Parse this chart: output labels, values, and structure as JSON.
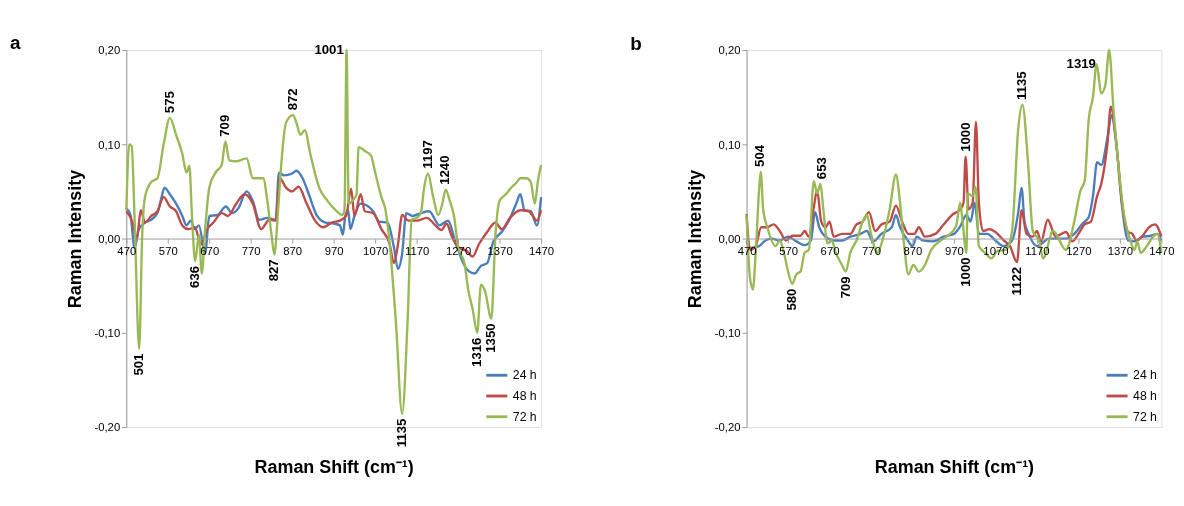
{
  "chart_data": [
    {
      "type": "line",
      "title": "a",
      "xlabel": "Raman Shift (cm⁻¹)",
      "ylabel": "Raman Intensity",
      "xlim": [
        470,
        1470
      ],
      "xticks": [
        470,
        570,
        670,
        770,
        870,
        970,
        1070,
        1170,
        1270,
        1370,
        1470
      ],
      "ylim": [
        -0.2,
        0.2
      ],
      "yticks": [
        {
          "value": -0.2,
          "label": "-0,20"
        },
        {
          "value": -0.1,
          "label": "-0,10"
        },
        {
          "value": 0,
          "label": "0,00"
        },
        {
          "value": 0.1,
          "label": "0,10"
        },
        {
          "value": 0.2,
          "label": "0,20"
        }
      ],
      "grid": false,
      "legend": "bottom right",
      "series": [
        {
          "name": "24 h",
          "color": "#4a7ebb",
          "x": [
            470,
            480,
            490,
            500,
            515,
            530,
            545,
            555,
            562,
            575,
            590,
            605,
            615,
            625,
            635,
            645,
            660,
            670,
            690,
            710,
            725,
            740,
            760,
            775,
            790,
            810,
            830,
            838,
            850,
            870,
            880,
            895,
            910,
            930,
            950,
            970,
            985,
            992,
            998,
            1005,
            1010,
            1020,
            1035,
            1050,
            1065,
            1080,
            1100,
            1115,
            1125,
            1135,
            1145,
            1160,
            1180,
            1200,
            1225,
            1245,
            1265,
            1290,
            1310,
            1325,
            1340,
            1355,
            1375,
            1390,
            1410,
            1420,
            1430,
            1445,
            1460,
            1470
          ],
          "values": [
            0.032,
            0.025,
            -0.01,
            0.01,
            0.017,
            0.02,
            0.027,
            0.044,
            0.054,
            0.047,
            0.037,
            0.024,
            0.014,
            0.019,
            0.01,
            0.014,
            -0.016,
            0.024,
            0.025,
            0.034,
            0.027,
            0.032,
            0.05,
            0.04,
            0.02,
            0.022,
            0.02,
            0.07,
            0.067,
            0.069,
            0.072,
            0.064,
            0.047,
            0.024,
            0.017,
            0.016,
            0.014,
            0.004,
            0.024,
            0.03,
            0.01,
            0.024,
            0.037,
            0.035,
            0.029,
            0.018,
            0.017,
            -0.009,
            -0.032,
            -0.016,
            0.027,
            0.024,
            0.027,
            0.029,
            0.014,
            0.019,
            -0.006,
            -0.032,
            -0.037,
            -0.029,
            -0.026,
            -0.003,
            0.007,
            0.017,
            0.037,
            0.047,
            0.03,
            0.029,
            0.014,
            0.044
          ]
        },
        {
          "name": "48 h",
          "color": "#be4b48",
          "x": [
            470,
            485,
            495,
            505,
            515,
            530,
            545,
            560,
            575,
            590,
            605,
            620,
            635,
            650,
            665,
            680,
            700,
            715,
            735,
            755,
            775,
            795,
            815,
            830,
            840,
            855,
            870,
            885,
            905,
            925,
            945,
            965,
            985,
            1000,
            1012,
            1020,
            1035,
            1045,
            1065,
            1085,
            1105,
            1115,
            1125,
            1135,
            1150,
            1170,
            1195,
            1215,
            1230,
            1242,
            1255,
            1270,
            1290,
            1305,
            1320,
            1340,
            1360,
            1375,
            1395,
            1420,
            1440,
            1460,
            1470
          ],
          "values": [
            0.029,
            0.017,
            -0.001,
            0.03,
            0.017,
            0.024,
            0.029,
            0.044,
            0.034,
            0.029,
            0.014,
            0.01,
            0.012,
            -0.006,
            0.01,
            0.017,
            0.027,
            0.024,
            0.037,
            0.047,
            0.037,
            0.01,
            0.02,
            0.019,
            0.064,
            0.054,
            0.05,
            0.055,
            0.037,
            0.019,
            0.012,
            0.017,
            0.019,
            0.024,
            0.053,
            0.024,
            0.047,
            0.029,
            0.027,
            0.01,
            -0.006,
            -0.026,
            -0.006,
            0.025,
            0.019,
            0.019,
            0.022,
            0.014,
            0.009,
            0.016,
            0.002,
            -0.009,
            -0.013,
            -0.019,
            -0.006,
            0.007,
            0.017,
            0.01,
            0.022,
            0.03,
            0.029,
            0.019,
            0.03
          ]
        },
        {
          "name": "72 h",
          "color": "#98b954",
          "x": [
            470,
            477,
            483,
            490,
            501,
            508,
            515,
            530,
            545,
            560,
            575,
            590,
            605,
            615,
            622,
            628,
            636,
            645,
            652,
            660,
            670,
            685,
            700,
            709,
            718,
            735,
            760,
            775,
            790,
            800,
            810,
            820,
            827,
            835,
            842,
            855,
            872,
            880,
            890,
            900,
            915,
            935,
            955,
            975,
            990,
            996,
            1001,
            1006,
            1015,
            1025,
            1030,
            1045,
            1060,
            1070,
            1085,
            1095,
            1105,
            1120,
            1135,
            1148,
            1158,
            1170,
            1180,
            1188,
            1197,
            1210,
            1222,
            1232,
            1240,
            1250,
            1260,
            1270,
            1285,
            1295,
            1305,
            1316,
            1325,
            1335,
            1350,
            1360,
            1370,
            1385,
            1400,
            1410,
            1420,
            1435,
            1445,
            1455,
            1462,
            1470
          ],
          "values": [
            0.03,
            0.1,
            0.098,
            0.02,
            -0.117,
            0.0,
            0.044,
            0.06,
            0.064,
            0.1,
            0.128,
            0.11,
            0.09,
            0.07,
            0.077,
            0.027,
            -0.024,
            0.004,
            -0.037,
            0.01,
            0.054,
            0.07,
            0.078,
            0.103,
            0.083,
            0.082,
            0.085,
            0.064,
            0.064,
            0.064,
            0.04,
            0.004,
            -0.017,
            0.024,
            0.07,
            0.123,
            0.131,
            0.123,
            0.11,
            0.115,
            0.087,
            0.054,
            0.04,
            0.03,
            0.025,
            0.03,
            0.2,
            0.037,
            0.04,
            0.047,
            0.097,
            0.093,
            0.088,
            0.07,
            0.044,
            0.03,
            -0.006,
            -0.089,
            -0.186,
            -0.089,
            0.02,
            0.022,
            0.027,
            0.054,
            0.069,
            0.044,
            0.025,
            0.037,
            0.052,
            0.04,
            0.024,
            -0.009,
            -0.026,
            -0.056,
            -0.075,
            -0.1,
            -0.049,
            -0.056,
            -0.085,
            0.004,
            0.04,
            0.047,
            0.055,
            0.059,
            0.064,
            0.064,
            0.06,
            0.037,
            0.06,
            0.078
          ]
        }
      ],
      "annotations": [
        {
          "text": "501",
          "x": 501,
          "y": -0.117
        },
        {
          "text": "575",
          "x": 575,
          "y": 0.128
        },
        {
          "text": "636",
          "x": 636,
          "y": -0.024
        },
        {
          "text": "709",
          "x": 709,
          "y": 0.103
        },
        {
          "text": "827",
          "x": 827,
          "y": -0.017
        },
        {
          "text": "872",
          "x": 872,
          "y": 0.131
        },
        {
          "text": "1001",
          "x": 1001,
          "y": 0.2
        },
        {
          "text": "1135",
          "x": 1135,
          "y": -0.186
        },
        {
          "text": "1197",
          "x": 1197,
          "y": 0.069
        },
        {
          "text": "1240",
          "x": 1240,
          "y": 0.052
        },
        {
          "text": "1316",
          "x": 1316,
          "y": -0.1
        },
        {
          "text": "1350",
          "x": 1350,
          "y": -0.085
        }
      ]
    },
    {
      "type": "line",
      "title": "b",
      "xlabel": "Raman Shift (cm⁻¹)",
      "ylabel": "Raman Intensity",
      "xlim": [
        470,
        1470
      ],
      "xticks": [
        470,
        570,
        670,
        770,
        870,
        970,
        1070,
        1170,
        1270,
        1370,
        1470
      ],
      "ylim": [
        -0.2,
        0.2
      ],
      "yticks": [
        {
          "value": -0.2,
          "label": "-0,20"
        },
        {
          "value": -0.1,
          "label": "-0,10"
        },
        {
          "value": 0,
          "label": "0,00"
        },
        {
          "value": 0.1,
          "label": "0,10"
        },
        {
          "value": 0.2,
          "label": "0,20"
        }
      ],
      "grid": false,
      "legend": "bottom right",
      "series": [
        {
          "name": "24 h",
          "color": "#4a7ebb",
          "x": [
            470,
            480,
            500,
            515,
            530,
            550,
            570,
            590,
            610,
            625,
            635,
            645,
            660,
            680,
            700,
            720,
            745,
            760,
            775,
            795,
            820,
            830,
            840,
            860,
            870,
            880,
            895,
            920,
            945,
            970,
            985,
            1000,
            1010,
            1020,
            1030,
            1050,
            1070,
            1090,
            1110,
            1125,
            1133,
            1140,
            1150,
            1170,
            1200,
            1240,
            1260,
            1280,
            1295,
            1305,
            1315,
            1325,
            1340,
            1350,
            1362,
            1375,
            1390,
            1405,
            1425,
            1445,
            1460,
            1470
          ],
          "values": [
            -0.003,
            -0.01,
            -0.008,
            -0.002,
            0.0,
            -0.002,
            0.002,
            -0.003,
            -0.007,
            -0.002,
            0.028,
            0.012,
            0.002,
            -0.002,
            -0.002,
            0.002,
            0.005,
            0.008,
            -0.003,
            0.005,
            0.012,
            0.025,
            0.012,
            -0.003,
            -0.008,
            0.002,
            -0.002,
            -0.003,
            0.002,
            0.005,
            0.013,
            0.025,
            0.018,
            0.038,
            0.005,
            0.005,
            -0.002,
            -0.008,
            -0.002,
            0.028,
            0.054,
            0.018,
            0.005,
            -0.008,
            0.0,
            0.0,
            0.005,
            0.016,
            0.023,
            0.045,
            0.081,
            0.078,
            0.107,
            0.131,
            0.097,
            0.035,
            -0.002,
            -0.003,
            0.002,
            0.003,
            0.005,
            -0.002
          ]
        },
        {
          "name": "48 h",
          "color": "#be4b48",
          "x": [
            470,
            478,
            492,
            505,
            520,
            535,
            550,
            565,
            580,
            600,
            610,
            620,
            632,
            640,
            650,
            660,
            670,
            680,
            700,
            720,
            735,
            750,
            765,
            780,
            795,
            815,
            830,
            845,
            860,
            875,
            885,
            900,
            925,
            945,
            965,
            985,
            993,
            998,
            1005,
            1015,
            1023,
            1030,
            1040,
            1055,
            1070,
            1090,
            1105,
            1122,
            1133,
            1145,
            1160,
            1170,
            1180,
            1196,
            1215,
            1240,
            1255,
            1270,
            1285,
            1300,
            1315,
            1325,
            1340,
            1348,
            1360,
            1375,
            1390,
            1400,
            1410,
            1425,
            1440,
            1455,
            1470
          ],
          "values": [
            0.026,
            -0.012,
            -0.008,
            0.012,
            0.012,
            0.015,
            0.008,
            -0.002,
            0.003,
            0.003,
            0.008,
            0.002,
            0.033,
            0.051,
            0.018,
            0.012,
            0.018,
            0.002,
            0.005,
            0.005,
            0.015,
            0.018,
            0.028,
            0.008,
            0.015,
            0.018,
            0.035,
            0.018,
            0.005,
            0.005,
            0.012,
            0.002,
            0.005,
            0.015,
            0.025,
            0.031,
            0.038,
            0.087,
            0.031,
            0.038,
            0.124,
            0.038,
            0.008,
            0.01,
            0.007,
            -0.002,
            -0.008,
            -0.025,
            0.03,
            0.005,
            0.002,
            0.008,
            -0.003,
            0.02,
            0.002,
            0.007,
            -0.003,
            0.005,
            0.015,
            0.018,
            0.045,
            0.058,
            0.101,
            0.14,
            0.107,
            0.038,
            0.007,
            0.005,
            -0.002,
            0.003,
            0.012,
            0.015,
            0.002
          ]
        },
        {
          "name": "72 h",
          "color": "#98b954",
          "x": [
            470,
            478,
            485,
            492,
            500,
            504,
            510,
            520,
            540,
            550,
            560,
            570,
            580,
            590,
            600,
            610,
            620,
            632,
            640,
            648,
            655,
            665,
            675,
            685,
            700,
            709,
            720,
            735,
            750,
            760,
            770,
            785,
            800,
            815,
            830,
            840,
            850,
            860,
            872,
            885,
            900,
            915,
            935,
            955,
            975,
            985,
            990,
            1000,
            1003,
            1015,
            1022,
            1030,
            1045,
            1060,
            1075,
            1095,
            1110,
            1125,
            1135,
            1148,
            1160,
            1175,
            1185,
            1209,
            1240,
            1260,
            1275,
            1285,
            1295,
            1305,
            1314,
            1325,
            1335,
            1344,
            1355,
            1365,
            1380,
            1395,
            1405,
            1412,
            1420,
            1435,
            1450,
            1460,
            1470
          ],
          "values": [
            0.025,
            -0.041,
            -0.054,
            -0.015,
            0.051,
            0.071,
            0.031,
            0.012,
            -0.008,
            -0.002,
            -0.015,
            -0.035,
            -0.048,
            -0.038,
            -0.035,
            -0.015,
            -0.012,
            0.061,
            0.048,
            0.058,
            0.031,
            -0.005,
            -0.002,
            -0.015,
            -0.028,
            -0.035,
            -0.015,
            -0.002,
            0.018,
            0.025,
            0.005,
            -0.015,
            0.002,
            0.031,
            0.068,
            0.038,
            -0.008,
            -0.038,
            -0.028,
            -0.035,
            -0.028,
            -0.012,
            -0.003,
            0.003,
            0.013,
            0.038,
            0.021,
            -0.015,
            0.048,
            0.045,
            0.055,
            -0.008,
            -0.015,
            -0.021,
            -0.013,
            -0.012,
            0.008,
            0.117,
            0.142,
            0.084,
            0.008,
            -0.002,
            -0.021,
            0.008,
            -0.012,
            0.018,
            0.051,
            0.061,
            0.127,
            0.15,
            0.185,
            0.154,
            0.163,
            0.2,
            0.134,
            0.084,
            0.025,
            -0.002,
            -0.012,
            -0.003,
            -0.015,
            -0.008,
            0.002,
            0.005,
            -0.015
          ]
        }
      ],
      "annotations": [
        {
          "text": "504",
          "x": 504,
          "y": 0.071
        },
        {
          "text": "580",
          "x": 580,
          "y": -0.048
        },
        {
          "text": "653",
          "x": 653,
          "y": 0.058
        },
        {
          "text": "709",
          "x": 709,
          "y": -0.035
        },
        {
          "text": "1000",
          "x": 1000,
          "y": 0.087
        },
        {
          "text": "1000",
          "x": 1000,
          "y": -0.015
        },
        {
          "text": "1122",
          "x": 1122,
          "y": -0.025
        },
        {
          "text": "1135",
          "x": 1135,
          "y": 0.142
        },
        {
          "text": "1319",
          "x": 1319,
          "y": 0.185
        }
      ]
    }
  ]
}
